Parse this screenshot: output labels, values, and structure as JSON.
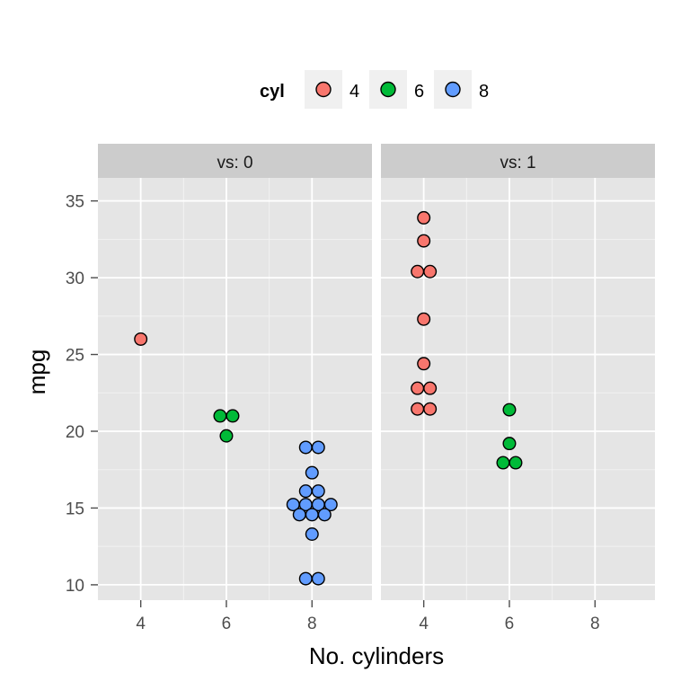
{
  "chart_data": {
    "type": "scatter",
    "subtype": "dotplot",
    "x_label": "No. cylinders",
    "y_label": "mpg",
    "ylim": [
      9,
      36.5
    ],
    "xlim": [
      3,
      9.4
    ],
    "x_ticks": [
      4,
      6,
      8
    ],
    "y_ticks": [
      10,
      15,
      20,
      25,
      30,
      35
    ],
    "grid": true,
    "legend": {
      "title": "cyl",
      "position": "top",
      "entries": [
        {
          "label": "4",
          "color": "#F8766D"
        },
        {
          "label": "6",
          "color": "#00BA38"
        },
        {
          "label": "8",
          "color": "#619CFF"
        }
      ]
    },
    "panels": [
      {
        "label": "vs: 0",
        "points": [
          {
            "x": 4,
            "y": 26.0,
            "cyl": "4"
          },
          {
            "x": 6,
            "y": 21.0,
            "cyl": "6"
          },
          {
            "x": 6,
            "y": 21.0,
            "cyl": "6"
          },
          {
            "x": 6,
            "y": 19.7,
            "cyl": "6"
          },
          {
            "x": 8,
            "y": 18.7,
            "cyl": "8"
          },
          {
            "x": 8,
            "y": 19.2,
            "cyl": "8"
          },
          {
            "x": 8,
            "y": 17.3,
            "cyl": "8"
          },
          {
            "x": 8,
            "y": 16.4,
            "cyl": "8"
          },
          {
            "x": 8,
            "y": 15.5,
            "cyl": "8"
          },
          {
            "x": 8,
            "y": 15.2,
            "cyl": "8"
          },
          {
            "x": 8,
            "y": 15.2,
            "cyl": "8"
          },
          {
            "x": 8,
            "y": 15.8,
            "cyl": "8"
          },
          {
            "x": 8,
            "y": 15.0,
            "cyl": "8"
          },
          {
            "x": 8,
            "y": 14.7,
            "cyl": "8"
          },
          {
            "x": 8,
            "y": 14.7,
            "cyl": "8"
          },
          {
            "x": 8,
            "y": 14.3,
            "cyl": "8"
          },
          {
            "x": 8,
            "y": 13.3,
            "cyl": "8"
          },
          {
            "x": 8,
            "y": 10.4,
            "cyl": "8"
          },
          {
            "x": 8,
            "y": 10.4,
            "cyl": "8"
          }
        ]
      },
      {
        "label": "vs: 1",
        "points": [
          {
            "x": 4,
            "y": 33.9,
            "cyl": "4"
          },
          {
            "x": 4,
            "y": 32.4,
            "cyl": "4"
          },
          {
            "x": 4,
            "y": 30.4,
            "cyl": "4"
          },
          {
            "x": 4,
            "y": 30.4,
            "cyl": "4"
          },
          {
            "x": 4,
            "y": 27.3,
            "cyl": "4"
          },
          {
            "x": 4,
            "y": 24.4,
            "cyl": "4"
          },
          {
            "x": 4,
            "y": 22.8,
            "cyl": "4"
          },
          {
            "x": 4,
            "y": 22.8,
            "cyl": "4"
          },
          {
            "x": 4,
            "y": 21.5,
            "cyl": "4"
          },
          {
            "x": 4,
            "y": 21.4,
            "cyl": "4"
          },
          {
            "x": 6,
            "y": 21.4,
            "cyl": "6"
          },
          {
            "x": 6,
            "y": 19.2,
            "cyl": "6"
          },
          {
            "x": 6,
            "y": 18.1,
            "cyl": "6"
          },
          {
            "x": 6,
            "y": 17.8,
            "cyl": "6"
          }
        ]
      }
    ]
  }
}
